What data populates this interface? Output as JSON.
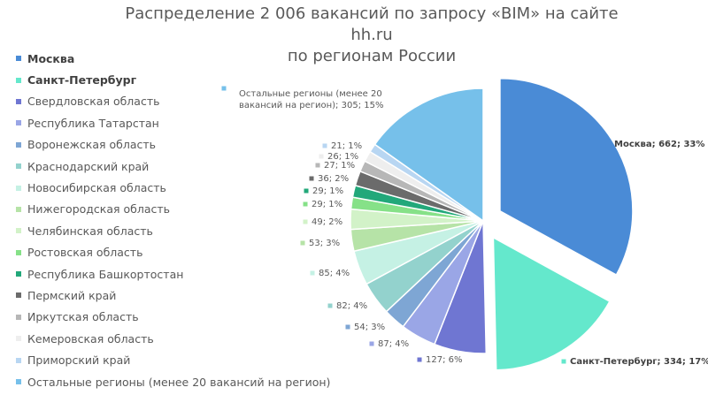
{
  "title_line1": "Распределение 2 006 вакансий по запросу «BIM» на сайте hh.ru",
  "title_line2": "по регионам России",
  "chart_data": {
    "type": "pie",
    "title": "Распределение 2 006 вакансий по запросу «BIM» на сайте hh.ru по регионам России",
    "legend_position": "left",
    "slices": [
      {
        "name": "Москва",
        "value": 662,
        "percent": 33,
        "label": "Москва; 662; 33%",
        "color": "#4a8bd6",
        "bold": true,
        "exploded": true
      },
      {
        "name": "Санкт-Петербург",
        "value": 334,
        "percent": 17,
        "label": "Санкт-Петербург; 334; 17%",
        "color": "#64e8cc",
        "bold": true,
        "exploded": true
      },
      {
        "name": "Свердловская область",
        "value": 127,
        "percent": 6,
        "label": "127; 6%",
        "color": "#6f76d2",
        "bold": false,
        "exploded": false
      },
      {
        "name": "Республика Татарстан",
        "value": 87,
        "percent": 4,
        "label": "87; 4%",
        "color": "#9aa6e6",
        "bold": false,
        "exploded": false
      },
      {
        "name": "Воронежская область",
        "value": 54,
        "percent": 3,
        "label": "54; 3%",
        "color": "#7ea6d4",
        "bold": false,
        "exploded": false
      },
      {
        "name": "Краснодарский край",
        "value": 82,
        "percent": 4,
        "label": "82; 4%",
        "color": "#93d2cd",
        "bold": false,
        "exploded": false
      },
      {
        "name": "Новосибирская область",
        "value": 85,
        "percent": 4,
        "label": "85; 4%",
        "color": "#c5f1e4",
        "bold": false,
        "exploded": false
      },
      {
        "name": "Нижегородская область",
        "value": 53,
        "percent": 3,
        "label": "53; 3%",
        "color": "#b6e3a7",
        "bold": false,
        "exploded": false
      },
      {
        "name": "Челябинская область",
        "value": 49,
        "percent": 2,
        "label": "49; 2%",
        "color": "#d2f2c8",
        "bold": false,
        "exploded": false
      },
      {
        "name": "Ростовская область",
        "value": 29,
        "percent": 1,
        "label": "29; 1%",
        "color": "#86e188",
        "bold": false,
        "exploded": false
      },
      {
        "name": "Республика Башкортостан",
        "value": 29,
        "percent": 1,
        "label": "29; 1%",
        "color": "#22a87a",
        "bold": false,
        "exploded": false
      },
      {
        "name": "Пермский край",
        "value": 36,
        "percent": 2,
        "label": "36; 2%",
        "color": "#6b6b6b",
        "bold": false,
        "exploded": false
      },
      {
        "name": "Иркутская область",
        "value": 27,
        "percent": 1,
        "label": "27; 1%",
        "color": "#b7b7b7",
        "bold": false,
        "exploded": false
      },
      {
        "name": "Кемеровская область",
        "value": 26,
        "percent": 1,
        "label": "26; 1%",
        "color": "#eeeeee",
        "bold": false,
        "exploded": false
      },
      {
        "name": "Приморский край",
        "value": 21,
        "percent": 1,
        "label": "21; 1%",
        "color": "#b8d6f2",
        "bold": false,
        "exploded": false
      },
      {
        "name": "Остальные регионы (менее 20 вакансий на регион)",
        "value": 305,
        "percent": 15,
        "label": "Остальные регионы (менее 20 вакансий на регион); 305; 15%",
        "label_lines": [
          "Остальные регионы (менее 20",
          "вакансий на регион); 305; 15%"
        ],
        "color": "#76c0ea",
        "bold": false,
        "exploded": false
      }
    ]
  }
}
